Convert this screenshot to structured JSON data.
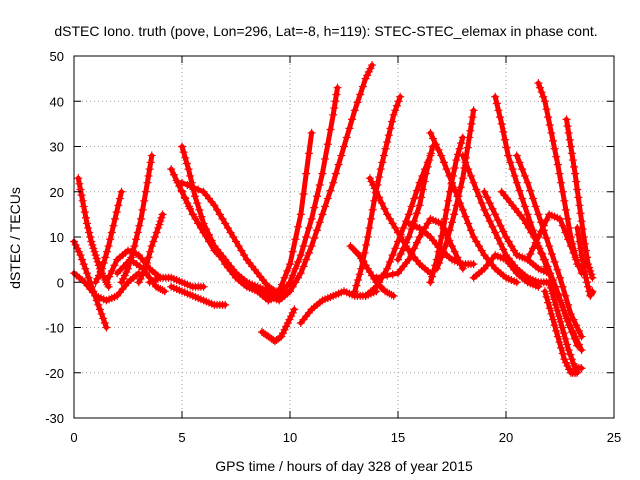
{
  "chart_data": {
    "type": "scatter",
    "title": "dSTEC Iono. truth (pove, Lon=296, Lat=-8, h=119): STEC-STEC_elemax in phase cont.",
    "xlabel": "GPS time / hours of day 328 of year 2015",
    "ylabel": "dSTEC  / TECUs",
    "xlim": [
      0,
      25
    ],
    "ylim": [
      -30,
      50
    ],
    "xticks": [
      "0",
      "5",
      "10",
      "15",
      "20",
      "25"
    ],
    "yticks": [
      "-30",
      "-20",
      "-10",
      "0",
      "10",
      "20",
      "30",
      "40",
      "50"
    ],
    "grid": true,
    "marker": "plus",
    "color": "#ff0000",
    "series": [
      {
        "x": [
          0.2,
          0.4,
          0.6,
          0.8,
          1.0,
          1.2,
          1.4,
          1.6
        ],
        "y": [
          23,
          18,
          13,
          9,
          6,
          3,
          1,
          -1
        ]
      },
      {
        "x": [
          0.0,
          0.3,
          0.6,
          0.9,
          1.2,
          1.5
        ],
        "y": [
          9,
          6,
          2,
          -2,
          -6,
          -10
        ]
      },
      {
        "x": [
          0.0,
          0.5,
          1.0,
          1.5,
          2.0,
          2.5,
          3.0
        ],
        "y": [
          2,
          0,
          -3,
          -4,
          -3,
          0,
          2
        ]
      },
      {
        "x": [
          1.0,
          1.3,
          1.6,
          1.9,
          2.2
        ],
        "y": [
          0,
          3,
          8,
          14,
          20
        ]
      },
      {
        "x": [
          2.2,
          2.5,
          2.8,
          3.1,
          3.4,
          3.6
        ],
        "y": [
          0,
          3,
          8,
          14,
          22,
          28
        ]
      },
      {
        "x": [
          1.5,
          2.0,
          2.5,
          3.0,
          3.5,
          4.0
        ],
        "y": [
          0,
          5,
          7,
          6,
          3,
          1
        ]
      },
      {
        "x": [
          2.0,
          2.6,
          3.2,
          3.8,
          4.2
        ],
        "y": [
          2,
          5,
          3,
          -1,
          -2
        ]
      },
      {
        "x": [
          3.0,
          3.3,
          3.6,
          3.9,
          4.1
        ],
        "y": [
          0,
          3,
          8,
          12,
          15
        ]
      },
      {
        "x": [
          3.5,
          4.0,
          4.5,
          5.0,
          5.5,
          6.0
        ],
        "y": [
          0,
          1,
          1,
          0,
          -1,
          -1
        ]
      },
      {
        "x": [
          4.5,
          5.0,
          5.5,
          6.0,
          6.5,
          7.0
        ],
        "y": [
          -1,
          -2,
          -3,
          -4,
          -5,
          -5
        ]
      },
      {
        "x": [
          4.5,
          5.0,
          5.5,
          6.0,
          6.5,
          7.0,
          7.5,
          8.0,
          8.5,
          9.0,
          9.4
        ],
        "y": [
          25,
          20,
          15,
          11,
          8,
          5,
          2,
          0,
          -1,
          -2,
          -2
        ]
      },
      {
        "x": [
          5.0,
          5.3,
          5.6,
          6.0,
          6.5,
          7.0,
          7.5,
          8.0,
          8.5,
          9.0,
          9.4
        ],
        "y": [
          30,
          25,
          19,
          13,
          8,
          4,
          1,
          -1,
          -2,
          -3,
          -3
        ]
      },
      {
        "x": [
          5.0,
          6.0,
          6.5,
          7.0,
          7.5,
          8.0,
          8.5,
          9.0,
          9.3
        ],
        "y": [
          22,
          20,
          17,
          13,
          9,
          5,
          2,
          -1,
          -2
        ]
      },
      {
        "x": [
          4.8,
          5.5,
          6.5,
          7.5,
          8.5,
          9.0,
          9.5,
          10.0,
          10.5,
          11.0
        ],
        "y": [
          22,
          15,
          7,
          2,
          -2,
          -4,
          -2,
          4,
          15,
          33
        ]
      },
      {
        "x": [
          8.5,
          9.0,
          9.5,
          10.0,
          10.5,
          11.0,
          11.5,
          12.0,
          12.2
        ],
        "y": [
          -2,
          -4,
          -3,
          0,
          6,
          14,
          24,
          37,
          43
        ]
      },
      {
        "x": [
          9.0,
          9.5,
          10.0,
          10.5,
          11.0,
          11.5,
          12.0,
          12.5,
          13.0,
          13.5,
          13.8
        ],
        "y": [
          -3,
          -4,
          -2,
          2,
          8,
          15,
          22,
          30,
          38,
          45,
          48
        ]
      },
      {
        "x": [
          8.7,
          9.0,
          9.3,
          9.6,
          9.9,
          10.2
        ],
        "y": [
          -11,
          -12,
          -13,
          -12,
          -9,
          -6
        ]
      },
      {
        "x": [
          10.5,
          11.0,
          11.5,
          12.0,
          12.5,
          13.0,
          13.5,
          14.0
        ],
        "y": [
          -9,
          -6,
          -4,
          -3,
          -2,
          -3,
          -3,
          -2
        ]
      },
      {
        "x": [
          13.5,
          14.0,
          14.5,
          15.0,
          15.5,
          16.0,
          16.5
        ],
        "y": [
          -3,
          -1,
          3,
          9,
          15,
          22,
          28
        ]
      },
      {
        "x": [
          13.0,
          13.3,
          13.6,
          13.9,
          14.2,
          14.5,
          14.8,
          15.1
        ],
        "y": [
          -2,
          3,
          10,
          18,
          25,
          31,
          37,
          41
        ]
      },
      {
        "x": [
          13.7,
          14.0,
          14.5,
          15.0,
          15.5,
          16.0,
          16.5
        ],
        "y": [
          23,
          20,
          15,
          11,
          7,
          4,
          2
        ]
      },
      {
        "x": [
          12.8,
          13.2,
          13.6,
          14.0,
          14.4,
          14.8
        ],
        "y": [
          8,
          6,
          3,
          0,
          -2,
          -3
        ]
      },
      {
        "x": [
          14.0,
          15.0,
          15.5,
          16.0,
          16.5,
          17.0,
          17.5,
          18.0
        ],
        "y": [
          1,
          2,
          5,
          10,
          14,
          13,
          8,
          3
        ]
      },
      {
        "x": [
          15.5,
          16.0,
          16.5,
          17.0,
          17.5,
          18.0,
          18.5
        ],
        "y": [
          13,
          12,
          10,
          7,
          5,
          4,
          4
        ]
      },
      {
        "x": [
          15.0,
          15.5,
          16.0,
          16.3,
          16.6
        ],
        "y": [
          5,
          10,
          17,
          24,
          30
        ]
      },
      {
        "x": [
          16.5,
          16.8,
          17.1,
          17.4,
          17.7,
          18.0
        ],
        "y": [
          0,
          5,
          12,
          20,
          27,
          32
        ]
      },
      {
        "x": [
          16.8,
          17.2,
          17.6,
          18.0,
          18.3,
          18.5
        ],
        "y": [
          3,
          8,
          15,
          23,
          32,
          38
        ]
      },
      {
        "x": [
          16.5,
          17.0,
          17.5,
          18.0,
          18.5,
          19.0,
          19.5,
          20.0,
          20.5
        ],
        "y": [
          33,
          28,
          22,
          16,
          10,
          6,
          3,
          1,
          0
        ]
      },
      {
        "x": [
          18.0,
          18.5,
          19.0,
          19.5,
          20.0,
          20.5,
          21.0,
          21.5,
          22.0
        ],
        "y": [
          28,
          22,
          16,
          11,
          6,
          3,
          1,
          0,
          0
        ]
      },
      {
        "x": [
          18.5,
          19.0,
          19.5,
          20.0,
          20.5,
          21.0,
          21.5
        ],
        "y": [
          1,
          3,
          6,
          5,
          2,
          0,
          -1
        ]
      },
      {
        "x": [
          19.0,
          19.5,
          20.0,
          20.5,
          21.0,
          21.5,
          22.0
        ],
        "y": [
          20,
          15,
          10,
          6,
          5,
          3,
          2
        ]
      },
      {
        "x": [
          19.5,
          19.8,
          20.1,
          20.5,
          21.0,
          21.5,
          22.0,
          22.5,
          23.0,
          23.5
        ],
        "y": [
          41,
          35,
          28,
          22,
          15,
          8,
          2,
          -4,
          -10,
          -15
        ]
      },
      {
        "x": [
          19.8,
          20.3,
          20.8,
          21.3,
          21.8,
          22.3,
          22.8,
          23.3
        ],
        "y": [
          20,
          17,
          14,
          10,
          5,
          -1,
          -8,
          -14
        ]
      },
      {
        "x": [
          20.5,
          21.0,
          21.5,
          22.0,
          22.5,
          23.0,
          23.5
        ],
        "y": [
          28,
          22,
          15,
          8,
          1,
          -7,
          -12
        ]
      },
      {
        "x": [
          21.5,
          21.8,
          22.1,
          22.4,
          22.7,
          23.0,
          23.3
        ],
        "y": [
          44,
          40,
          33,
          26,
          18,
          10,
          4
        ]
      },
      {
        "x": [
          21.0,
          21.5,
          22.0,
          22.5,
          23.0,
          23.5
        ],
        "y": [
          5,
          10,
          15,
          14,
          8,
          2
        ]
      },
      {
        "x": [
          22.0,
          22.3,
          22.6,
          22.9,
          23.2,
          23.5
        ],
        "y": [
          0,
          -5,
          -10,
          -15,
          -19,
          -19
        ]
      },
      {
        "x": [
          21.8,
          22.1,
          22.4,
          22.7,
          23.0,
          23.3
        ],
        "y": [
          -2,
          -7,
          -12,
          -17,
          -20,
          -20
        ]
      },
      {
        "x": [
          22.8,
          23.0,
          23.2,
          23.4,
          23.6,
          23.8,
          24.0
        ],
        "y": [
          36,
          30,
          24,
          17,
          10,
          4,
          1
        ]
      },
      {
        "x": [
          23.3,
          23.5,
          23.7,
          23.9,
          24.0
        ],
        "y": [
          12,
          6,
          1,
          -3,
          -2
        ]
      }
    ]
  }
}
